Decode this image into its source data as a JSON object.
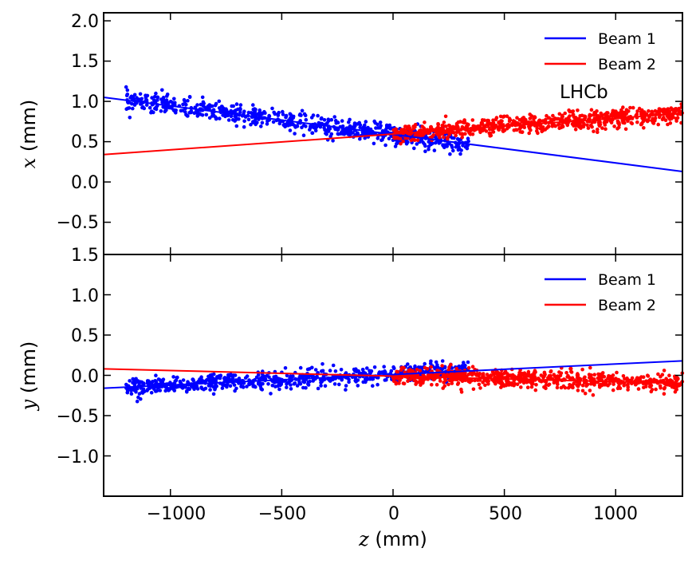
{
  "chart_data": [
    {
      "type": "scatter",
      "panel": "top",
      "ylabel_var": "x",
      "ylabel_unit": " (mm)",
      "xlim": [
        -1300,
        1300
      ],
      "ylim": [
        -0.9,
        2.1
      ],
      "yticks": [
        2.0,
        1.5,
        1.0,
        0.5,
        0.0,
        -0.5
      ],
      "ytick_labels": [
        "2.0",
        "1.5",
        "1.0",
        "0.5",
        "0.0",
        "−0.5"
      ],
      "annotation": "LHCb",
      "legend": [
        "Beam 1",
        "Beam 2"
      ],
      "series": [
        {
          "name": "Beam 1",
          "color": "#0000ff",
          "fit_line": {
            "z": [
              -1300,
              1300
            ],
            "v": [
              1.05,
              0.13
            ]
          },
          "points_model": {
            "z_range": [
              -1200,
              340
            ],
            "slope": -0.000354,
            "intercept": 0.59,
            "spread": 0.06,
            "n": 700
          }
        },
        {
          "name": "Beam 2",
          "color": "#ff0000",
          "fit_line": {
            "z": [
              -1300,
              1300
            ],
            "v": [
              0.34,
              0.85
            ]
          },
          "points_model": {
            "z_range": [
              0,
              1300
            ],
            "slope": 0.000196,
            "intercept": 0.595,
            "spread": 0.055,
            "n": 700
          }
        }
      ]
    },
    {
      "type": "scatter",
      "panel": "bottom",
      "ylabel_var": "y",
      "ylabel_unit": " (mm)",
      "xlabel_var": "z",
      "xlabel_unit": " (mm)",
      "xlim": [
        -1300,
        1300
      ],
      "ylim": [
        -1.5,
        1.5
      ],
      "xticks": [
        -1000,
        -500,
        0,
        500,
        1000
      ],
      "xtick_labels": [
        "−1000",
        "−500",
        "0",
        "500",
        "1000"
      ],
      "yticks": [
        1.5,
        1.0,
        0.5,
        0.0,
        -0.5,
        -1.0
      ],
      "ytick_labels": [
        "1.5",
        "1.0",
        "0.5",
        "0.0",
        "−0.5",
        "−1.0"
      ],
      "legend": [
        "Beam 1",
        "Beam 2"
      ],
      "series": [
        {
          "name": "Beam 1",
          "color": "#0000ff",
          "fit_line": {
            "z": [
              -1300,
              1300
            ],
            "v": [
              -0.16,
              0.18
            ]
          },
          "points_model": {
            "z_range": [
              -1200,
              340
            ],
            "slope": 0.000131,
            "intercept": 0.01,
            "spread": 0.055,
            "n": 700
          }
        },
        {
          "name": "Beam 2",
          "color": "#ff0000",
          "fit_line": {
            "z": [
              -1300,
              1300
            ],
            "v": [
              0.08,
              -0.1
            ]
          },
          "points_model": {
            "z_range": [
              0,
              1300
            ],
            "slope": -6.9e-05,
            "intercept": 0.0,
            "spread": 0.055,
            "n": 700
          }
        }
      ]
    }
  ]
}
